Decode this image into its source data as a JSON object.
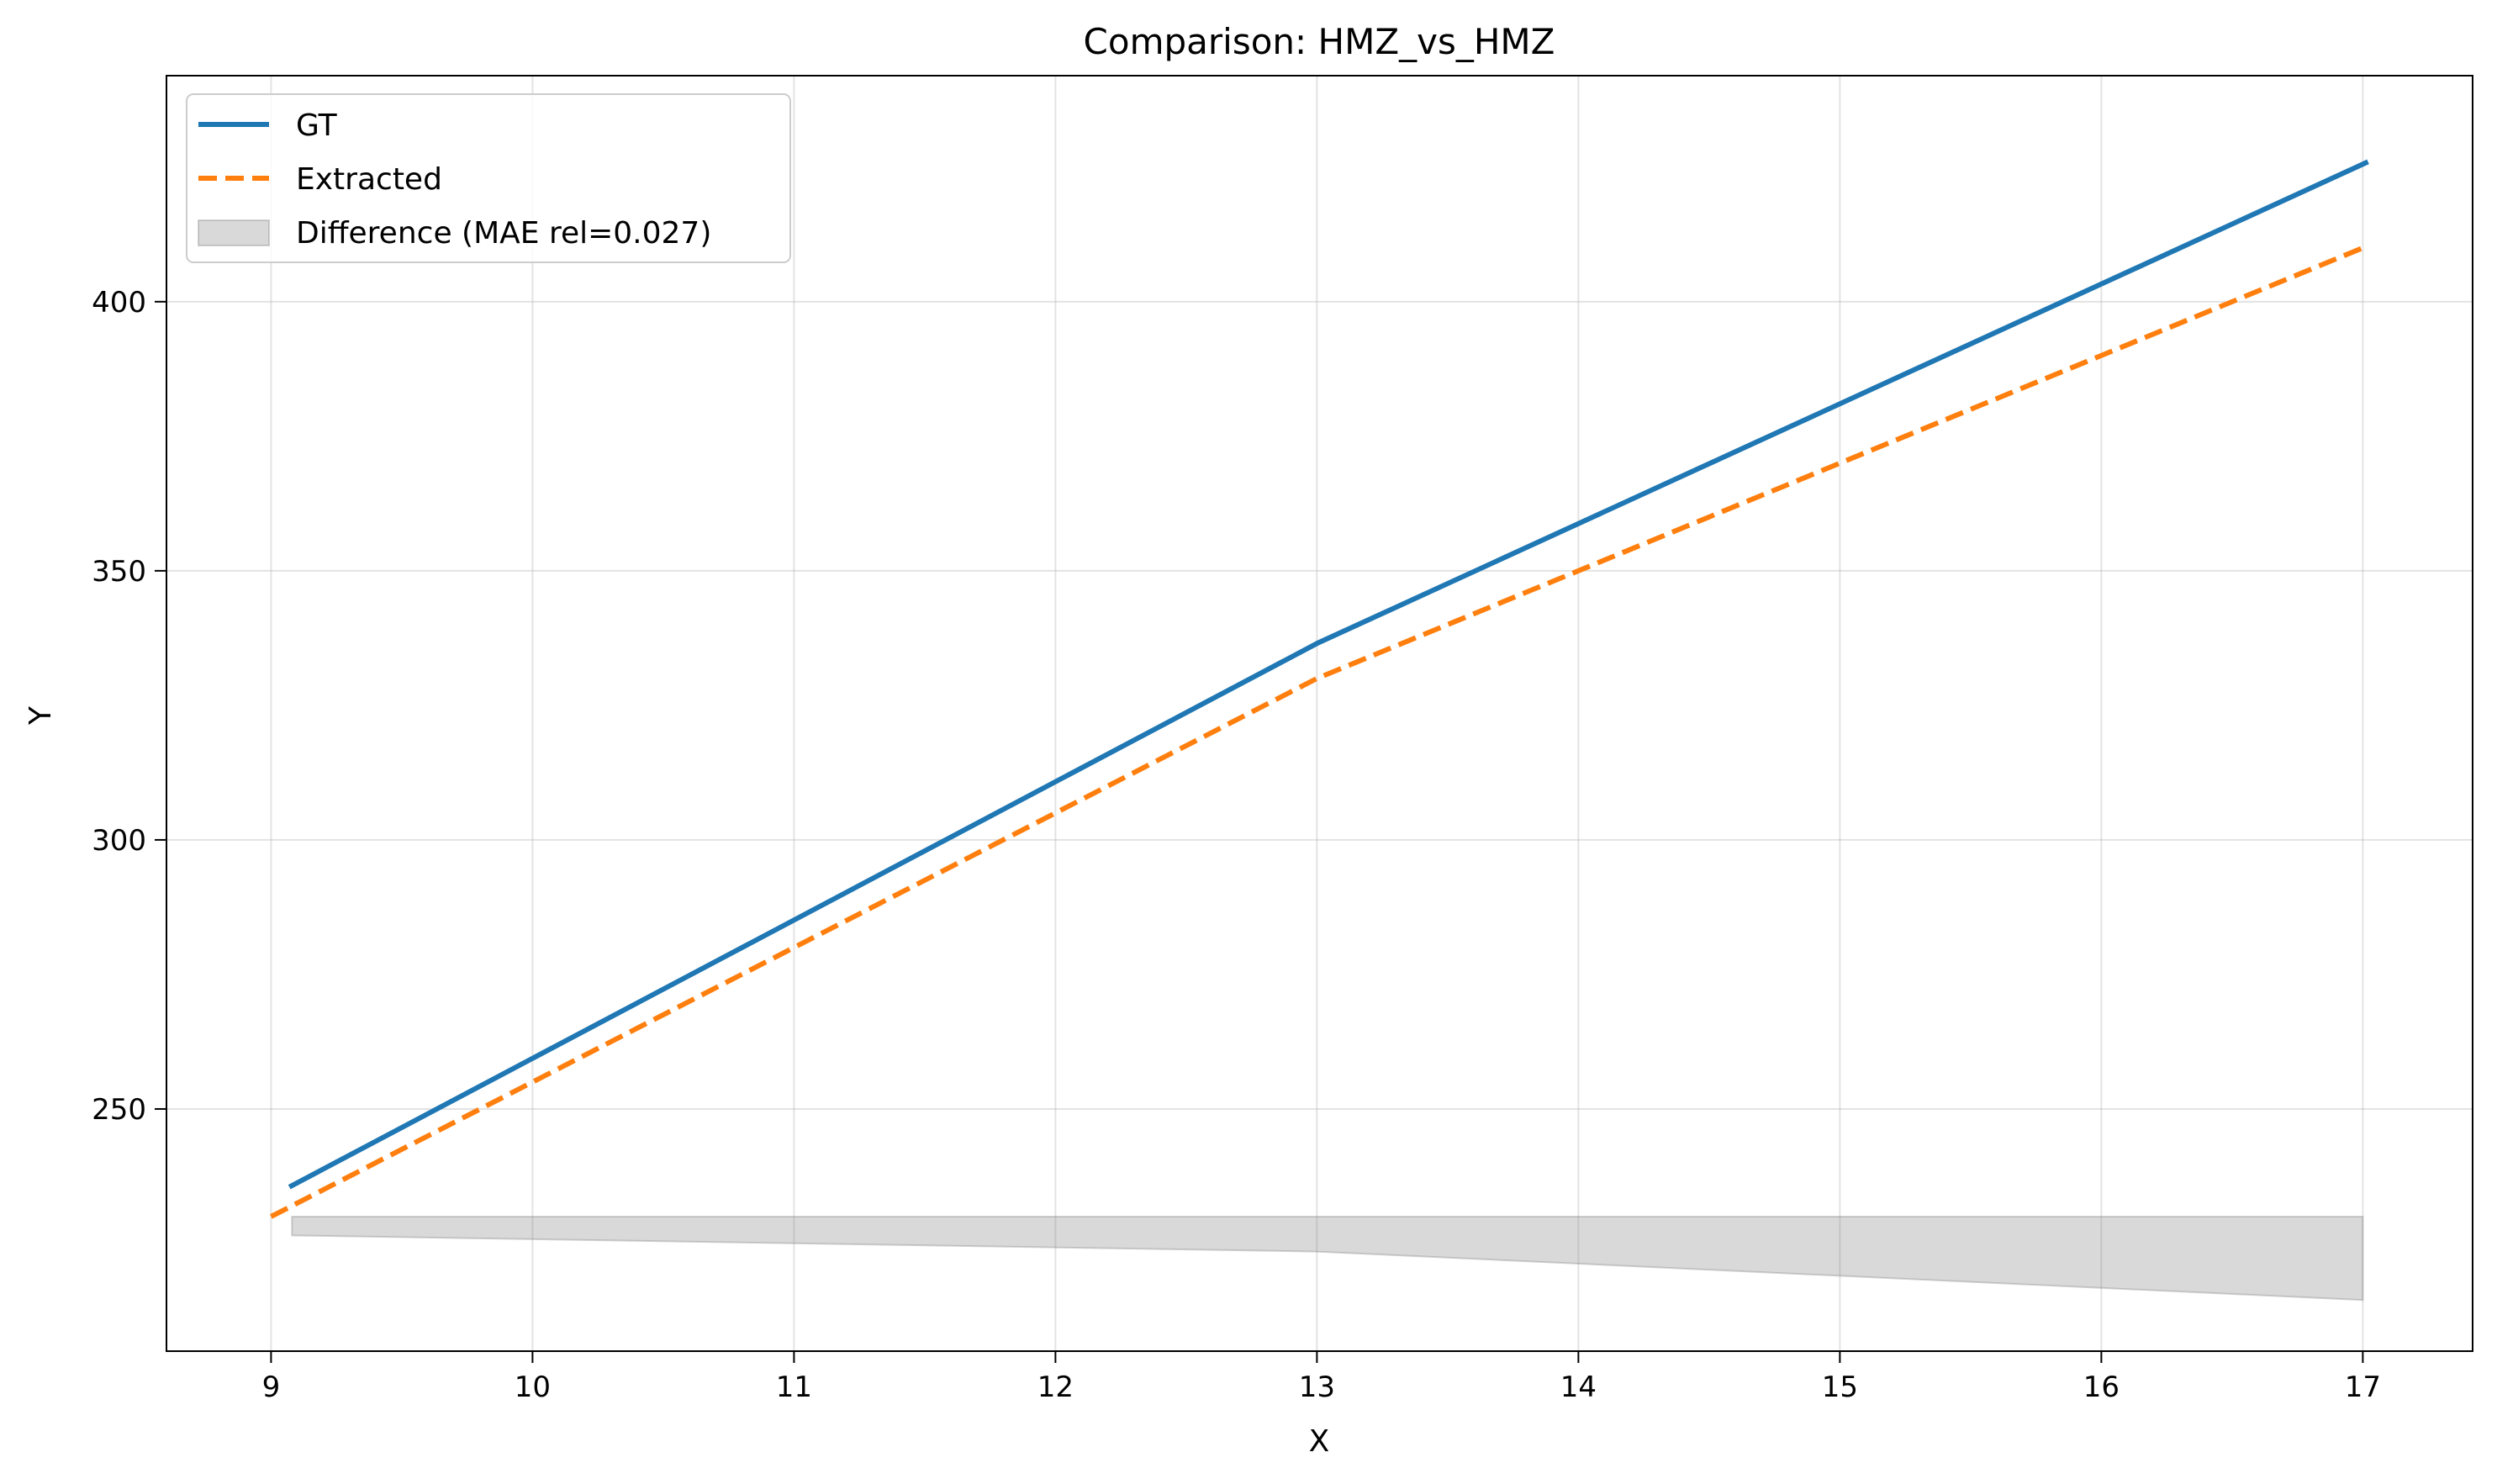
{
  "chart_data": {
    "type": "line",
    "title": "Comparison: HMZ_vs_HMZ",
    "xlabel": "X",
    "ylabel": "Y",
    "xlim": [
      8.6,
      17.42
    ],
    "ylim": [
      205,
      442
    ],
    "xticks": [
      9,
      10,
      11,
      12,
      13,
      14,
      15,
      16,
      17
    ],
    "yticks": [
      250,
      300,
      350,
      400
    ],
    "grid": true,
    "legend_position": "top-left",
    "series": [
      {
        "name": "GT",
        "style": "solid",
        "color": "#1f77b4",
        "x": [
          9.07,
          13,
          17.02
        ],
        "y": [
          235.5,
          336.5,
          426
        ]
      },
      {
        "name": "Extracted",
        "style": "dashed",
        "color": "#ff7f0e",
        "x": [
          9,
          13,
          17
        ],
        "y": [
          230,
          330,
          410
        ]
      }
    ],
    "difference_band": {
      "name": "Difference (MAE rel=0.027)",
      "color": "#808080",
      "x": [
        9.08,
        13,
        17
      ],
      "upper": [
        230,
        230,
        230
      ],
      "lower": [
        226.5,
        223.5,
        214.5
      ]
    }
  }
}
